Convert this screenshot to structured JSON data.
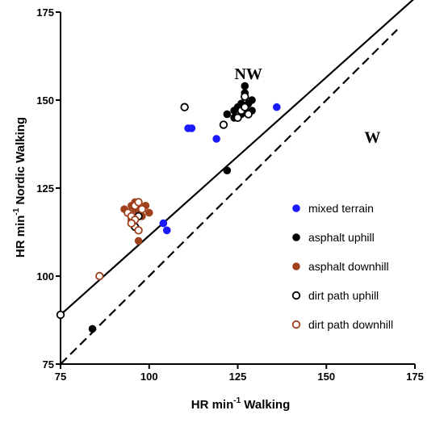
{
  "chart_data": {
    "type": "scatter",
    "xlabel": "HR  min",
    "xlabel_sup": "-1",
    "xlabel_suffix": "  Walking",
    "ylabel": "HR min",
    "ylabel_sup": "-1",
    "ylabel_suffix": " Nordic Walking",
    "xlim": [
      75,
      175
    ],
    "ylim": [
      75,
      175
    ],
    "xticks": [
      75,
      100,
      125,
      150,
      175
    ],
    "yticks": [
      75,
      100,
      125,
      150,
      175
    ],
    "grid": false,
    "legend_position": "right",
    "annotations": [
      {
        "text": "NW",
        "x": 128,
        "y": 156
      },
      {
        "text": "W",
        "x": 163,
        "y": 138
      }
    ],
    "lines": [
      {
        "style": "solid",
        "color": "#000000",
        "points": [
          [
            75,
            89
          ],
          [
            175,
            179
          ]
        ]
      },
      {
        "style": "dashed",
        "color": "#000000",
        "points": [
          [
            75,
            75
          ],
          [
            170,
            170
          ]
        ]
      }
    ],
    "series": [
      {
        "name": "mixed terrain",
        "marker": "filled",
        "color": "#1a1aff",
        "points": [
          [
            111,
            142
          ],
          [
            112,
            142
          ],
          [
            119,
            139
          ],
          [
            124,
            145
          ],
          [
            136,
            148
          ],
          [
            104,
            115
          ],
          [
            105,
            113
          ]
        ]
      },
      {
        "name": "asphalt uphill",
        "marker": "filled",
        "color": "#000000",
        "points": [
          [
            84,
            85
          ],
          [
            122,
            130
          ],
          [
            122,
            146
          ],
          [
            124,
            147
          ],
          [
            125,
            148
          ],
          [
            126,
            149
          ],
          [
            126,
            147
          ],
          [
            127,
            152
          ],
          [
            127,
            154
          ],
          [
            128,
            149
          ],
          [
            129,
            150
          ],
          [
            129,
            147
          ],
          [
            124,
            145
          ],
          [
            126,
            146
          ]
        ]
      },
      {
        "name": "asphalt downhill",
        "marker": "filled",
        "color": "#a0401c",
        "points": [
          [
            93,
            119
          ],
          [
            94,
            118
          ],
          [
            95,
            120
          ],
          [
            96,
            119
          ],
          [
            96,
            121
          ],
          [
            97,
            118
          ],
          [
            98,
            117
          ],
          [
            99,
            120
          ],
          [
            100,
            118
          ],
          [
            95,
            116
          ],
          [
            97,
            110
          ]
        ]
      },
      {
        "name": "dirt path uphill",
        "marker": "open",
        "color": "#000000",
        "points": [
          [
            75,
            89
          ],
          [
            110,
            148
          ],
          [
            121,
            143
          ],
          [
            125,
            145
          ],
          [
            126,
            147
          ],
          [
            127,
            151
          ],
          [
            128,
            146
          ],
          [
            127,
            148
          ],
          [
            97,
            117
          ],
          [
            96,
            114
          ]
        ]
      },
      {
        "name": "dirt path downhill",
        "marker": "open",
        "color": "#a0401c",
        "points": [
          [
            86,
            100
          ],
          [
            94,
            118
          ],
          [
            95,
            117
          ],
          [
            96,
            120
          ],
          [
            97,
            121
          ],
          [
            98,
            119
          ],
          [
            96,
            116
          ],
          [
            95,
            115
          ],
          [
            97,
            113
          ]
        ]
      }
    ]
  }
}
